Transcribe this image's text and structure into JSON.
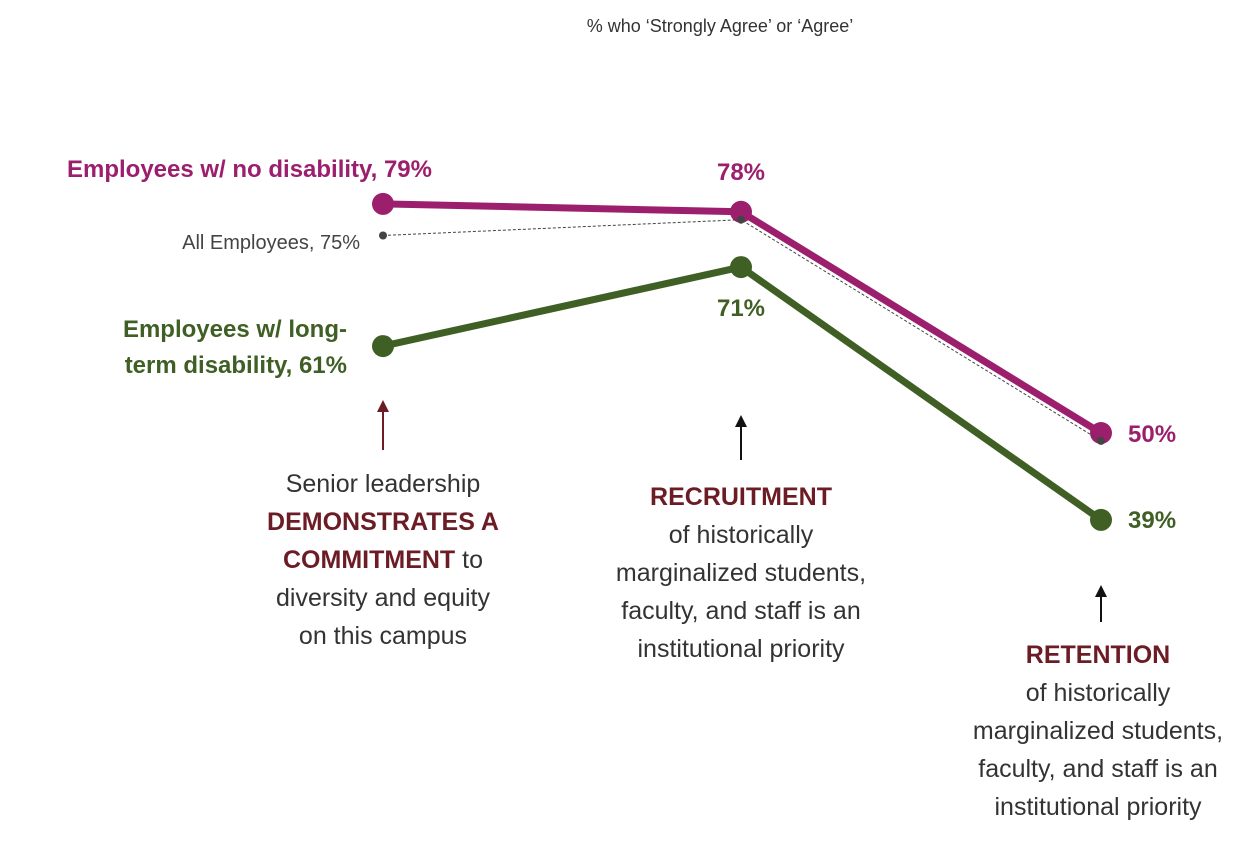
{
  "chart_data": {
    "type": "line",
    "title": "% who ‘Strongly Agree’ or ‘Agree’",
    "categories": [
      "Senior leadership\nDEMONSTRATES A\nCOMMITMENT to\ndiversity and equity\non this campus",
      "RECRUITMENT\nof historically\nmarginalized students,\nfaculty, and staff is an\ninstitutional priority",
      "RETENTION\nof historically\nmarginalized students,\nfaculty, and staff is an\ninstitutional priority"
    ],
    "emphasis": [
      "DEMONSTRATES A\nCOMMITMENT",
      "RECRUITMENT",
      "RETENTION"
    ],
    "emphasis_color": "#6b1c24",
    "ylim": [
      0,
      100
    ],
    "series": [
      {
        "name": "Employees w/ no disability",
        "color": "#9c1f6e",
        "values": [
          79,
          78,
          50
        ],
        "value_labels": [
          "Employees w/ no disability, 79%",
          "78%",
          "50%"
        ]
      },
      {
        "name": "All Employees",
        "color": "#444444",
        "dashed": true,
        "values": [
          75,
          77,
          49
        ],
        "value_labels": [
          "All Employees, 75%",
          null,
          null
        ]
      },
      {
        "name": "Employees w/ long-term disability",
        "color": "#3f5f24",
        "values": [
          61,
          71,
          39
        ],
        "value_labels": [
          "Employees w/ long-term disability, 61%",
          "71%",
          "39%"
        ]
      }
    ]
  }
}
